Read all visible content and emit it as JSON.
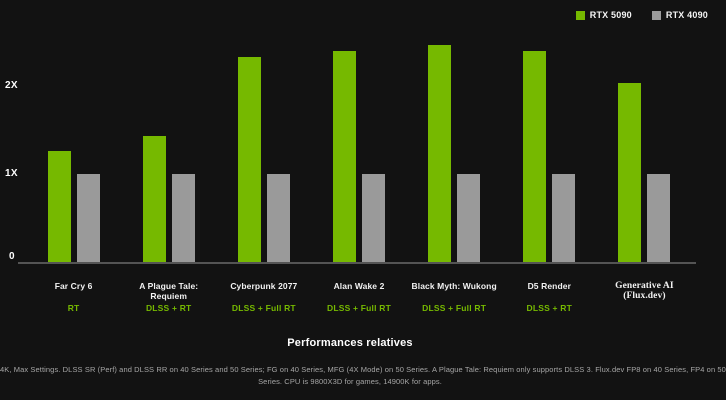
{
  "chart_data": {
    "type": "bar",
    "title": "Performances relatives",
    "categories": [
      "Far Cry 6",
      "A Plague Tale: Requiem",
      "Cyberpunk 2077",
      "Alan Wake 2",
      "Black Myth: Wukong",
      "D5 Render",
      "Generative AI (Flux.dev)"
    ],
    "settings": [
      "RT",
      "DLSS + RT",
      "DLSS + Full RT",
      "DLSS + Full RT",
      "DLSS + Full RT",
      "DLSS + RT",
      ""
    ],
    "series": [
      {
        "name": "RTX 5090",
        "color": "#76b900",
        "values": [
          1.26,
          1.43,
          2.33,
          2.4,
          2.47,
          2.4,
          2.03
        ]
      },
      {
        "name": "RTX 4090",
        "color": "#9a9a9a",
        "values": [
          1,
          1,
          1,
          1,
          1,
          1,
          1
        ]
      }
    ],
    "yticks": [
      "0",
      "1X",
      "2X"
    ],
    "ylim": [
      0,
      2.6
    ],
    "xlabel": "",
    "ylabel": "",
    "grid": false,
    "legend_position": "top-right"
  },
  "footnote": {
    "line1": "4K, Max Settings. DLSS SR (Perf) and DLSS RR on 40 Series and 50 Series; FG on 40 Series, MFG (4X Mode) on 50 Series. A Plague Tale: Requiem only supports DLSS 3. Flux.dev FP8 on 40 Series, FP4 on 50",
    "line2": "Series. CPU is 9800X3D for games, 14900K for apps."
  }
}
